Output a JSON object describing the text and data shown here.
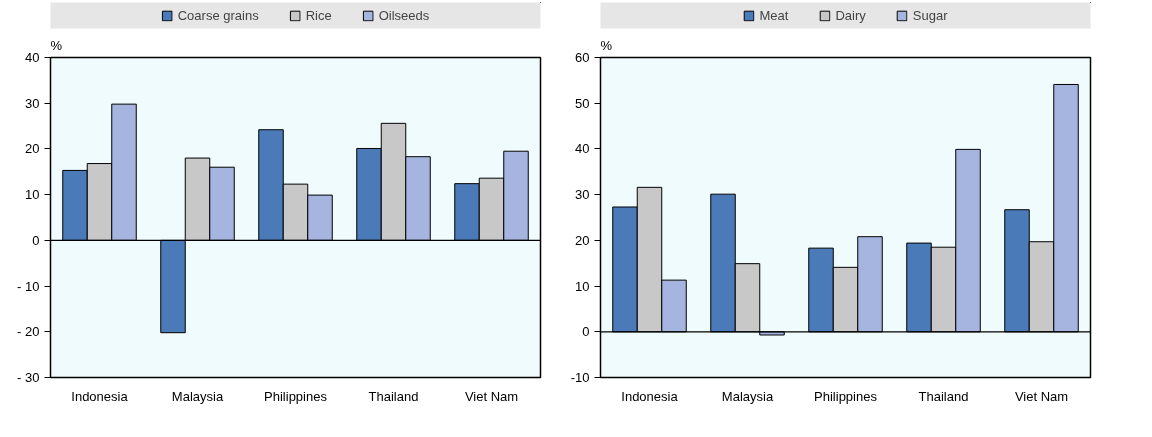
{
  "chart_data": [
    {
      "type": "bar",
      "ylabel": "%",
      "categories": [
        "Indonesia",
        "Malaysia",
        "Philippines",
        "Thailand",
        "Viet Nam"
      ],
      "series": [
        {
          "name": "Coarse grains",
          "color": "#4a7ab8",
          "values": [
            15.3,
            -20.2,
            24.2,
            20.1,
            12.4
          ]
        },
        {
          "name": "Rice",
          "color": "#c8c8c8",
          "values": [
            16.8,
            18,
            12.3,
            25.6,
            13.6
          ]
        },
        {
          "name": "Oilseeds",
          "color": "#a6b5e0",
          "values": [
            29.8,
            16,
            9.9,
            18.3,
            19.5
          ]
        }
      ],
      "ylim": [
        -30,
        40
      ],
      "yticks": [
        {
          "value": -30,
          "label": "- 30"
        },
        {
          "value": -20,
          "label": "- 20"
        },
        {
          "value": -10,
          "label": "- 10"
        },
        0,
        10,
        20,
        30,
        40
      ],
      "legend": "top"
    },
    {
      "type": "bar",
      "ylabel": "%",
      "categories": [
        "Indonesia",
        "Malaysia",
        "Philippines",
        "Thailand",
        "Viet Nam"
      ],
      "series": [
        {
          "name": "Meat",
          "color": "#4a7ab8",
          "values": [
            27.3,
            30.1,
            18.3,
            19.4,
            26.7
          ]
        },
        {
          "name": "Dairy",
          "color": "#c8c8c8",
          "values": [
            31.6,
            14.9,
            14.1,
            18.5,
            19.7
          ]
        },
        {
          "name": "Sugar",
          "color": "#a6b5e0",
          "values": [
            11.3,
            -0.7,
            20.8,
            39.9,
            54.1
          ]
        }
      ],
      "ylim": [
        -10,
        60
      ],
      "yticks": [
        -10,
        0,
        10,
        20,
        30,
        40,
        50,
        60
      ],
      "legend": "top"
    }
  ]
}
